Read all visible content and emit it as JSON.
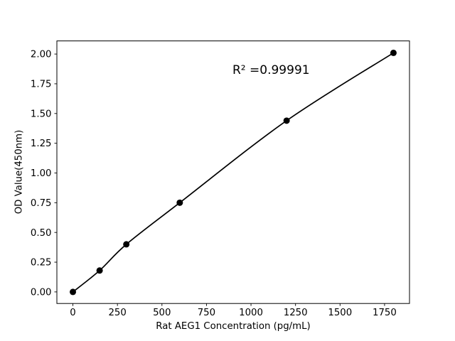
{
  "figure": {
    "background": "#ffffff"
  },
  "chart_data": {
    "type": "line",
    "title": "",
    "xlabel": "Rat AEG1 Concentration (pg/mL)",
    "ylabel": "OD Value(450nm)",
    "annotation": "R² =0.99991",
    "x": [
      0,
      150,
      300,
      600,
      1200,
      1800
    ],
    "y": [
      0.0,
      0.18,
      0.4,
      0.75,
      1.44,
      2.01
    ],
    "x_ticks": [
      0,
      250,
      500,
      750,
      1000,
      1250,
      1500,
      1750
    ],
    "x_tick_labels": [
      "0",
      "250",
      "500",
      "750",
      "1000",
      "1250",
      "1500",
      "1750"
    ],
    "y_ticks": [
      0.0,
      0.25,
      0.5,
      0.75,
      1.0,
      1.25,
      1.5,
      1.75,
      2.0
    ],
    "y_tick_labels": [
      "0.00",
      "0.25",
      "0.50",
      "0.75",
      "1.00",
      "1.25",
      "1.50",
      "1.75",
      "2.00"
    ],
    "xlim": [
      -90,
      1890
    ],
    "ylim": [
      -0.0974,
      2.1104
    ],
    "grid": false,
    "legend": "none",
    "line_color": "#000000",
    "marker": "circle",
    "marker_color": "#000000",
    "spine_color": "#000000",
    "background": "#ffffff"
  }
}
